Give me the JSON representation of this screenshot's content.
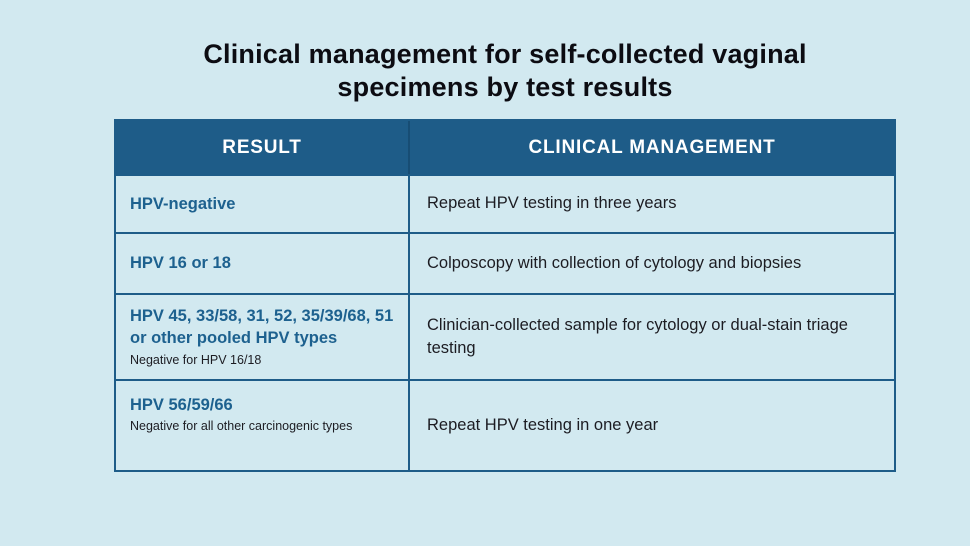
{
  "title": "Clinical management for self-collected vaginal specimens by test results",
  "colors": {
    "page_background": "#d2e9f0",
    "header_background": "#1e5c88",
    "table_border": "#1e5c88",
    "result_text": "#1d618f",
    "body_text": "#1c1c22",
    "header_text": "#ffffff",
    "title_text": "#0c0c12"
  },
  "table": {
    "headers": [
      "RESULT",
      "CLINICAL MANAGEMENT"
    ],
    "rows": [
      {
        "result": "HPV-negative",
        "note": "",
        "management": "Repeat HPV testing in three years"
      },
      {
        "result": "HPV 16 or 18",
        "note": "",
        "management": "Colposcopy with collection of cytology and biopsies"
      },
      {
        "result": "HPV 45, 33/58, 31, 52, 35/39/68, 51 or other pooled HPV types",
        "note": "Negative for HPV 16/18",
        "management": "Clinician-collected sample for cytology or dual-stain triage testing"
      },
      {
        "result": "HPV 56/59/66",
        "note": "Negative for all other carcinogenic types",
        "management": "Repeat HPV testing in one year"
      }
    ]
  },
  "chart_data": {
    "type": "table",
    "title": "Clinical management for self-collected vaginal specimens by test results",
    "columns": [
      "RESULT",
      "CLINICAL MANAGEMENT"
    ],
    "rows": [
      [
        "HPV-negative",
        "Repeat HPV testing in three years"
      ],
      [
        "HPV 16 or 18",
        "Colposcopy with collection of cytology and biopsies"
      ],
      [
        "HPV 45, 33/58, 31, 52, 35/39/68, 51 or other pooled HPV types (Negative for HPV 16/18)",
        "Clinician-collected sample for cytology or dual-stain triage testing"
      ],
      [
        "HPV 56/59/66 (Negative for all other carcinogenic types)",
        "Repeat HPV testing in one year"
      ]
    ],
    "legend_position": "none",
    "grid": true
  }
}
